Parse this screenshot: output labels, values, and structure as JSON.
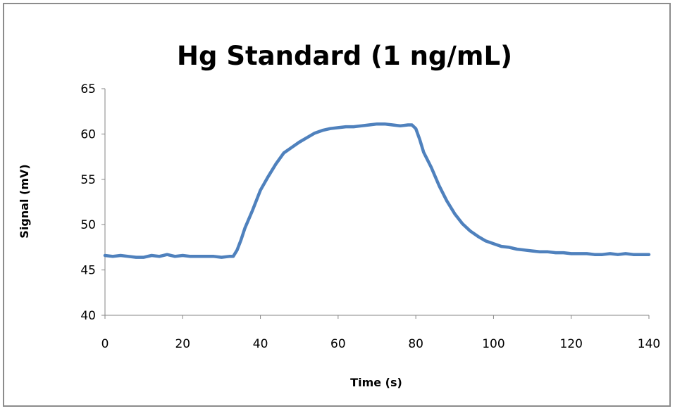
{
  "chart_data": {
    "type": "line",
    "title": "Hg Standard (1 ng/mL)",
    "xlabel": "Time (s)",
    "ylabel": "Signal (mV)",
    "xlim": [
      0,
      140
    ],
    "ylim": [
      40,
      65
    ],
    "x_ticks": [
      0,
      20,
      40,
      60,
      80,
      100,
      120,
      140
    ],
    "y_ticks": [
      40,
      45,
      50,
      55,
      60,
      65
    ],
    "grid": false,
    "legend": "none",
    "series": [
      {
        "color": "#4f81bd",
        "x": [
          0,
          2,
          4,
          6,
          8,
          10,
          12,
          14,
          16,
          18,
          20,
          22,
          24,
          26,
          28,
          30,
          32,
          33,
          34,
          35,
          36,
          38,
          40,
          42,
          44,
          46,
          48,
          50,
          52,
          54,
          56,
          58,
          60,
          62,
          64,
          66,
          68,
          70,
          72,
          74,
          76,
          78,
          79,
          80,
          81,
          82,
          84,
          86,
          88,
          90,
          92,
          94,
          96,
          98,
          100,
          102,
          104,
          106,
          108,
          110,
          112,
          114,
          116,
          118,
          120,
          122,
          124,
          126,
          128,
          130,
          132,
          134,
          136,
          138,
          140
        ],
        "y": [
          46.6,
          46.5,
          46.6,
          46.5,
          46.4,
          46.4,
          46.6,
          46.5,
          46.7,
          46.5,
          46.6,
          46.5,
          46.5,
          46.5,
          46.5,
          46.4,
          46.5,
          46.5,
          47.2,
          48.3,
          49.6,
          51.6,
          53.8,
          55.3,
          56.7,
          57.9,
          58.5,
          59.1,
          59.6,
          60.1,
          60.4,
          60.6,
          60.7,
          60.8,
          60.8,
          60.9,
          61.0,
          61.1,
          61.1,
          61.0,
          60.9,
          61.0,
          61.0,
          60.6,
          59.4,
          58.0,
          56.3,
          54.3,
          52.6,
          51.2,
          50.1,
          49.3,
          48.7,
          48.2,
          47.9,
          47.6,
          47.5,
          47.3,
          47.2,
          47.1,
          47.0,
          47.0,
          46.9,
          46.9,
          46.8,
          46.8,
          46.8,
          46.7,
          46.7,
          46.8,
          46.7,
          46.8,
          46.7,
          46.7,
          46.7
        ]
      }
    ]
  }
}
